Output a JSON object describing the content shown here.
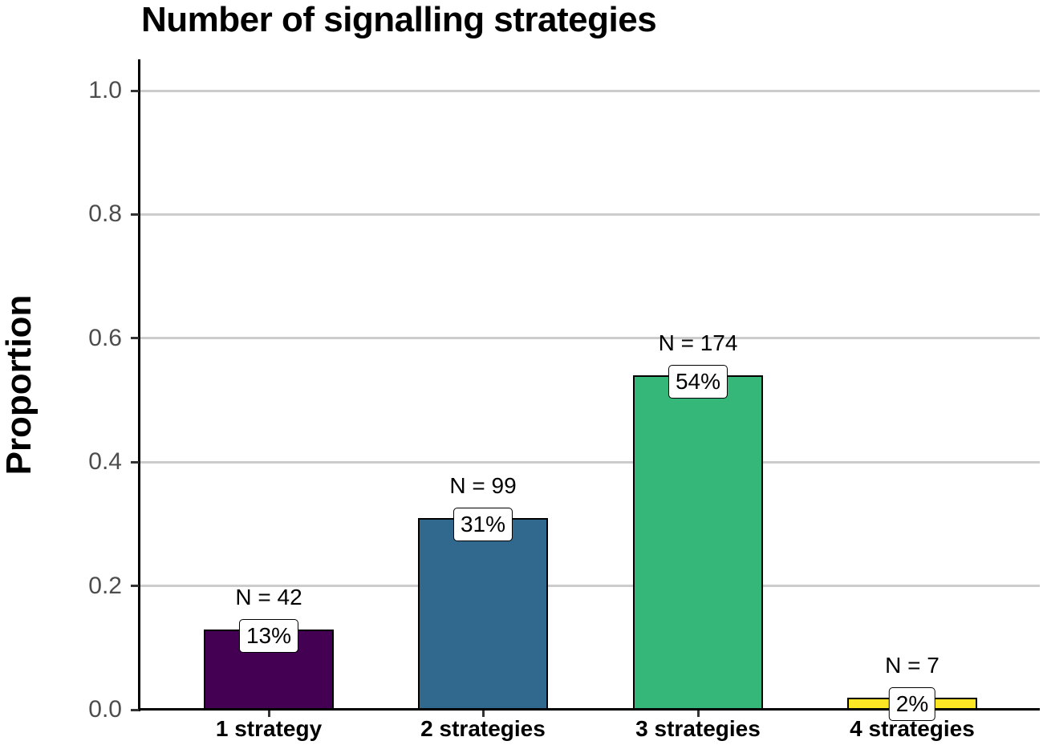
{
  "chart_data": {
    "type": "bar",
    "title": "Number of signalling strategies",
    "xlabel": "",
    "ylabel": "Proportion",
    "ylim": [
      0,
      1.0
    ],
    "yticks": [
      "0.0",
      "0.2",
      "0.4",
      "0.6",
      "0.8",
      "1.0"
    ],
    "grid": true,
    "legend": null,
    "categories": [
      "1 strategy",
      "2 strategies",
      "3 strategies",
      "4 strategies"
    ],
    "values": [
      0.13,
      0.31,
      0.54,
      0.02
    ],
    "counts": [
      42,
      99,
      174,
      7
    ],
    "n_labels": [
      "N = 42",
      "N = 99",
      "N = 174",
      "N = 7"
    ],
    "percent_labels": [
      "13%",
      "31%",
      "54%",
      "2%"
    ],
    "colors": [
      "#440154",
      "#31688e",
      "#35b779",
      "#fde725"
    ]
  }
}
